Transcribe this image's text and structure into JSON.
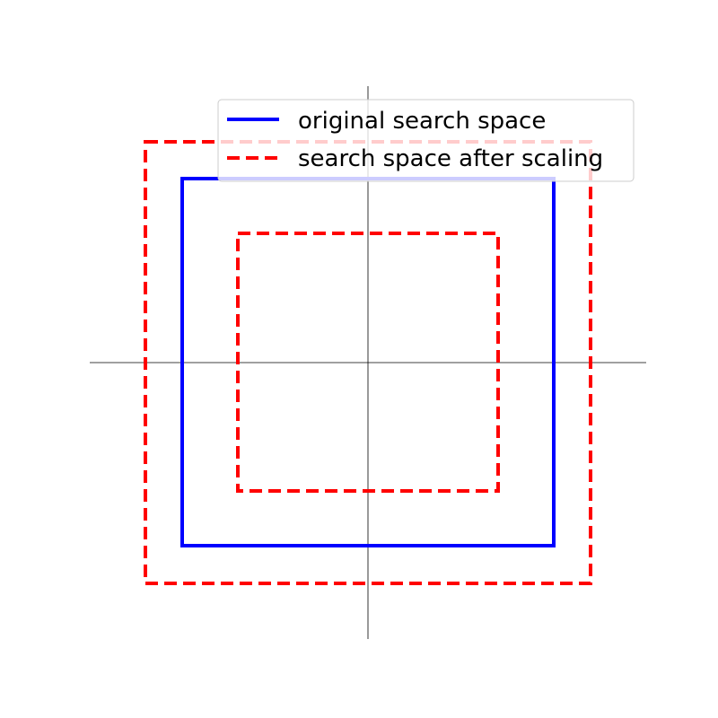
{
  "figure": {
    "axis_color": "#000000",
    "background": "#ffffff"
  },
  "squares": [
    {
      "key": "scaled_outer",
      "style": "dashed",
      "color": "#ff0000",
      "scale": 1.2
    },
    {
      "key": "original",
      "style": "solid",
      "color": "#0000ff",
      "scale": 1.0
    },
    {
      "key": "scaled_inner",
      "style": "dashed",
      "color": "#ff0000",
      "scale": 0.7
    }
  ],
  "legend": {
    "items": [
      {
        "label": "original search space",
        "style": "solid",
        "color": "#0000ff"
      },
      {
        "label": "search space after scaling",
        "style": "dashed",
        "color": "#ff0000"
      }
    ]
  }
}
